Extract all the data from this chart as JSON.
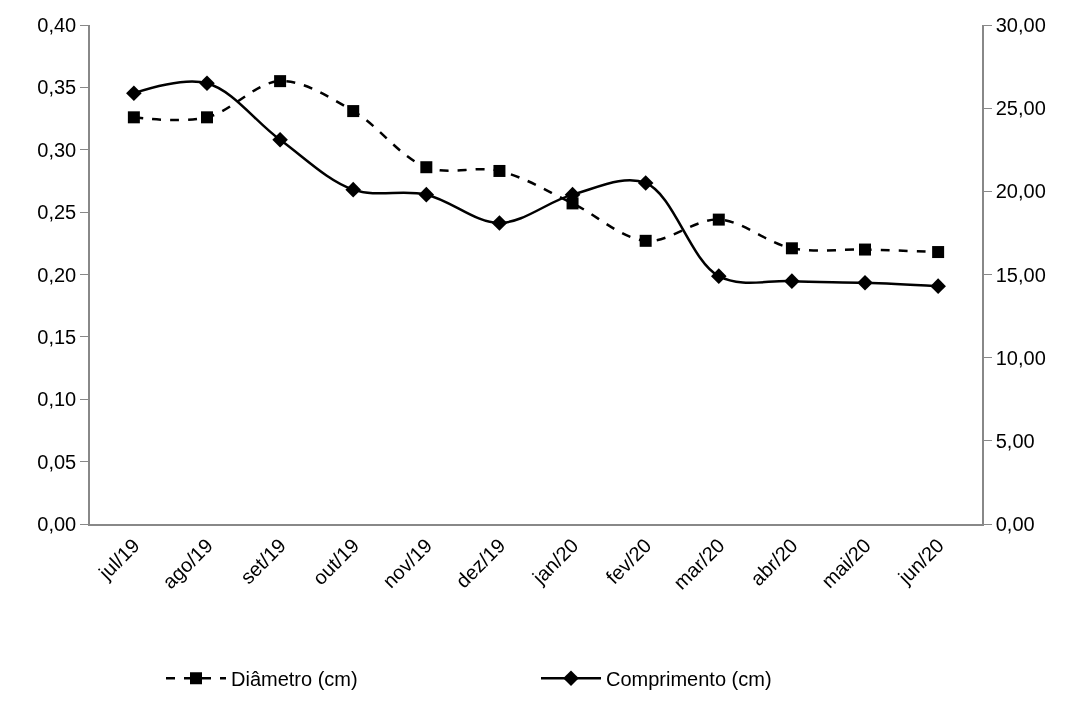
{
  "chart_data": {
    "type": "line",
    "categories": [
      "jul/19",
      "ago/19",
      "set/19",
      "out/19",
      "nov/19",
      "dez/19",
      "jan/20",
      "fev/20",
      "mar/20",
      "abr/20",
      "mai/20",
      "jun/20"
    ],
    "series": [
      {
        "name": "Diâmetro (cm)",
        "color": "#000000",
        "marker": "square",
        "line_style": "dashed",
        "values": [
          0.326,
          0.326,
          0.355,
          0.331,
          0.286,
          0.283,
          0.257,
          0.227,
          0.244,
          0.221,
          0.22,
          0.218
        ]
      },
      {
        "name": "Comprimento (cm)",
        "color": "#000000",
        "marker": "diamond",
        "line_style": "solid",
        "axis": "y2",
        "values": [
          25.9,
          26.5,
          23.1,
          20.1,
          19.8,
          18.1,
          19.8,
          20.5,
          14.9,
          14.6,
          14.5,
          14.3
        ]
      }
    ],
    "ylim": [
      0,
      0.4
    ],
    "yticks": [
      {
        "value": 0,
        "label": "0,00"
      },
      {
        "value": 0.05,
        "label": "0,05"
      },
      {
        "value": 0.1,
        "label": "0,10"
      },
      {
        "value": 0.15,
        "label": "0,15"
      },
      {
        "value": 0.2,
        "label": "0,20"
      },
      {
        "value": 0.25,
        "label": "0,25"
      },
      {
        "value": 0.3,
        "label": "0,30"
      },
      {
        "value": 0.35,
        "label": "0,35"
      },
      {
        "value": 0.4,
        "label": "0,40"
      }
    ],
    "y2lim": [
      0,
      30
    ],
    "y2ticks": [
      {
        "value": 0,
        "label": "0,00"
      },
      {
        "value": 5,
        "label": "5,00"
      },
      {
        "value": 10,
        "label": "10,00"
      },
      {
        "value": 15,
        "label": "15,00"
      },
      {
        "value": 20,
        "label": "20,00"
      },
      {
        "value": 25,
        "label": "25,00"
      },
      {
        "value": 30,
        "label": "30,00"
      }
    ],
    "legend": "bottom"
  }
}
